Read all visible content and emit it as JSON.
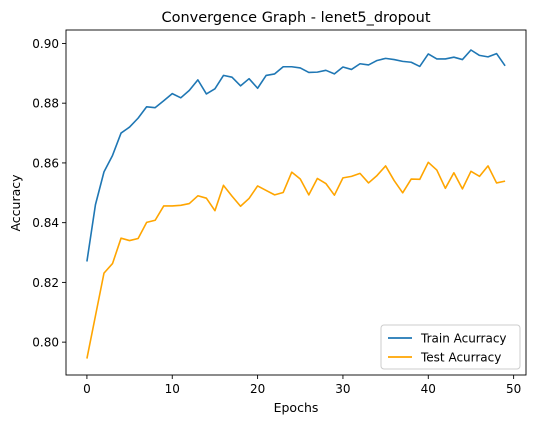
{
  "chart_data": {
    "type": "line",
    "title": "Convergence Graph - lenet5_dropout",
    "xlabel": "Epochs",
    "ylabel": "Accuracy",
    "xlim": [
      -2.45,
      51.45
    ],
    "ylim": [
      0.789,
      0.9045
    ],
    "xticks": [
      0,
      10,
      20,
      30,
      40,
      50
    ],
    "xtick_labels": [
      "0",
      "10",
      "20",
      "30",
      "40",
      "50"
    ],
    "yticks": [
      0.8,
      0.82,
      0.84,
      0.86,
      0.88,
      0.9
    ],
    "ytick_labels": [
      "0.80",
      "0.82",
      "0.84",
      "0.86",
      "0.88",
      "0.90"
    ],
    "grid": false,
    "legend_position": "lower-right",
    "x": [
      0,
      1,
      2,
      3,
      4,
      5,
      6,
      7,
      8,
      9,
      10,
      11,
      12,
      13,
      14,
      15,
      16,
      17,
      18,
      19,
      20,
      21,
      22,
      23,
      24,
      25,
      26,
      27,
      28,
      29,
      30,
      31,
      32,
      33,
      34,
      35,
      36,
      37,
      38,
      39,
      40,
      41,
      42,
      43,
      44,
      45,
      46,
      47,
      48,
      49
    ],
    "series": [
      {
        "name": "Train Acurracy",
        "color": "#1f77b4",
        "values": [
          0.827,
          0.846,
          0.857,
          0.8625,
          0.87,
          0.872,
          0.875,
          0.8788,
          0.8785,
          0.8808,
          0.8832,
          0.8818,
          0.8843,
          0.8878,
          0.8831,
          0.8848,
          0.8893,
          0.8887,
          0.8858,
          0.8882,
          0.885,
          0.8893,
          0.8898,
          0.8922,
          0.8922,
          0.8918,
          0.8903,
          0.8904,
          0.891,
          0.8898,
          0.8921,
          0.8913,
          0.8932,
          0.8928,
          0.8943,
          0.895,
          0.8946,
          0.894,
          0.8937,
          0.8923,
          0.8965,
          0.8948,
          0.8948,
          0.8954,
          0.8946,
          0.8978,
          0.896,
          0.8955,
          0.8966,
          0.8925
        ]
      },
      {
        "name": "Test Acurracy",
        "color": "#ffa500",
        "values": [
          0.7945,
          0.8088,
          0.8231,
          0.8263,
          0.8348,
          0.834,
          0.8347,
          0.8401,
          0.8408,
          0.8456,
          0.8456,
          0.8458,
          0.8464,
          0.849,
          0.8482,
          0.844,
          0.8525,
          0.8489,
          0.8455,
          0.8481,
          0.8523,
          0.8508,
          0.8493,
          0.8501,
          0.8569,
          0.8546,
          0.8493,
          0.8548,
          0.8531,
          0.8492,
          0.855,
          0.8555,
          0.8565,
          0.8533,
          0.8558,
          0.859,
          0.8541,
          0.85,
          0.8546,
          0.8545,
          0.8602,
          0.8576,
          0.8515,
          0.8567,
          0.8513,
          0.8572,
          0.8555,
          0.859,
          0.8533,
          0.8539
        ]
      }
    ]
  }
}
